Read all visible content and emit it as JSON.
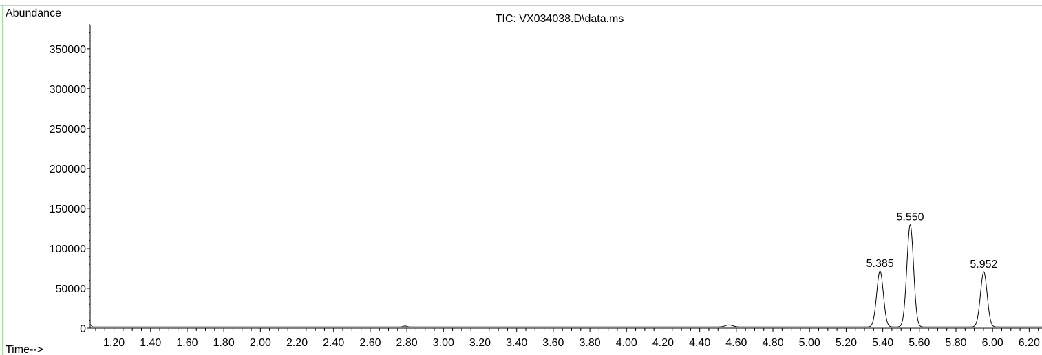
{
  "chart_data": {
    "type": "line",
    "title": "TIC: VX034038.D\\data.ms",
    "ylabel": "Abundance",
    "xlabel": "Time-->",
    "xlim": [
      1.07,
      6.27
    ],
    "ylim": [
      0,
      380000
    ],
    "x_ticks": [
      "1.20",
      "1.40",
      "1.60",
      "1.80",
      "2.00",
      "2.20",
      "2.40",
      "2.60",
      "2.80",
      "3.00",
      "3.20",
      "3.40",
      "3.60",
      "3.80",
      "4.00",
      "4.20",
      "4.40",
      "4.60",
      "4.80",
      "5.00",
      "5.20",
      "5.40",
      "5.60",
      "5.80",
      "6.00",
      "6.20"
    ],
    "y_ticks": [
      "0",
      "50000",
      "100000",
      "150000",
      "200000",
      "250000",
      "300000",
      "350000"
    ],
    "baseline": 1500,
    "peaks": [
      {
        "label": "5.385",
        "rt": 5.385,
        "height": 70000,
        "width": 0.018
      },
      {
        "label": "5.550",
        "rt": 5.55,
        "height": 128000,
        "width": 0.018
      },
      {
        "label": "5.952",
        "rt": 5.952,
        "height": 69000,
        "width": 0.018
      }
    ],
    "minor_peaks": [
      {
        "rt": 4.56,
        "height": 2500,
        "width": 0.02
      },
      {
        "rt": 2.79,
        "height": 1200,
        "width": 0.01
      },
      {
        "rt": 1.07,
        "height": 3000,
        "width": 0.006
      }
    ],
    "integration_color": "#3fb7b7",
    "frame_color": "#44cc44"
  }
}
